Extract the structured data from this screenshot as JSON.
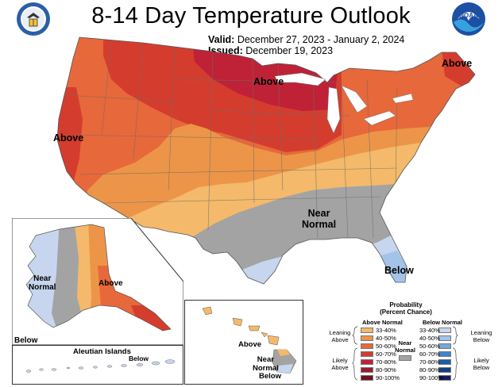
{
  "title": "8-14 Day Temperature Outlook",
  "valid": {
    "label": "Valid:",
    "value": "December 27, 2023 - January 2, 2024"
  },
  "issued": {
    "label": "Issued:",
    "value": "December 19, 2023"
  },
  "logos": {
    "left_icon": "department-of-commerce-seal",
    "right_icon": "noaa-logo",
    "right_text": "NOAA"
  },
  "map_labels": {
    "above_north": "Above",
    "above_west": "Above",
    "above_northeast": "Above",
    "near_normal_line1": "Near",
    "near_normal_line2": "Normal",
    "below_florida": "Below"
  },
  "alaska_labels": {
    "near": "Near",
    "normal": "Normal",
    "above": "Above",
    "below": "Below"
  },
  "aleutian": {
    "title": "Aleutian Islands",
    "below": "Below"
  },
  "hawaii_labels": {
    "above": "Above",
    "near": "Near",
    "normal": "Normal",
    "below": "Below"
  },
  "legend": {
    "title_line1": "Probability",
    "title_line2": "(Percent Chance)",
    "above_header": "Above Normal",
    "below_header": "Below Normal",
    "leaning_above": [
      "Leaning",
      "Above"
    ],
    "likely_above": [
      "Likely",
      "Above"
    ],
    "near_normal": [
      "Near",
      "Normal"
    ],
    "leaning_below": [
      "Leaning",
      "Below"
    ],
    "likely_below": [
      "Likely",
      "Below"
    ],
    "ranges": [
      "33-40%",
      "40-50%",
      "50-60%",
      "60-70%",
      "70-80%",
      "80-90%",
      "90-100%"
    ],
    "above_colors": [
      "#f4b96a",
      "#ec9548",
      "#e7683a",
      "#d43d2e",
      "#bf2236",
      "#9c1b2f",
      "#6e1121"
    ],
    "below_colors": [
      "#c7d6ee",
      "#a3c3e8",
      "#73a9dd",
      "#3d86cc",
      "#1b5ea8",
      "#173f85",
      "#1a1c5a"
    ],
    "near_color": "#a3a3a3"
  }
}
